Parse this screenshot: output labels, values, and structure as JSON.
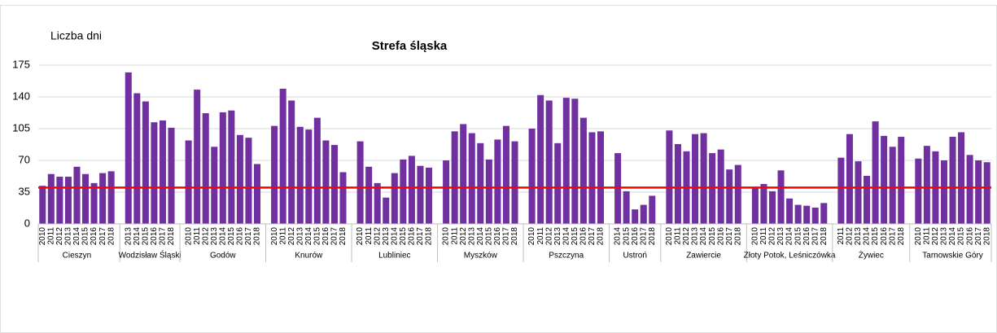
{
  "chart_data": {
    "type": "bar",
    "title": "Strefa śląska",
    "y_label": "Liczba dni",
    "color": "#7030a0",
    "grid": true,
    "ylim": [
      0,
      175
    ],
    "yticks": [
      0,
      35,
      70,
      105,
      140,
      175
    ],
    "reference_line": {
      "value": 40,
      "color": "#ff0000"
    },
    "groups": [
      {
        "name": "Cieszyn",
        "categories": [
          "2010",
          "2011",
          "2012",
          "2013",
          "2014",
          "2015",
          "2016",
          "2017",
          "2018"
        ],
        "values": [
          42,
          55,
          52,
          52,
          63,
          55,
          45,
          56,
          58
        ]
      },
      {
        "name": "Wodzisław Śląski",
        "categories": [
          "2013",
          "2014",
          "2015",
          "2016",
          "2017",
          "2018"
        ],
        "values": [
          167,
          144,
          135,
          112,
          114,
          106
        ]
      },
      {
        "name": "Godów",
        "categories": [
          "2010",
          "2011",
          "2012",
          "2013",
          "2014",
          "2015",
          "2016",
          "2017",
          "2018"
        ],
        "values": [
          92,
          148,
          122,
          85,
          123,
          125,
          98,
          95,
          66
        ]
      },
      {
        "name": "Knurów",
        "categories": [
          "2010",
          "2011",
          "2012",
          "2013",
          "2014",
          "2015",
          "2016",
          "2017",
          "2018"
        ],
        "values": [
          108,
          149,
          136,
          107,
          104,
          117,
          92,
          87,
          57
        ]
      },
      {
        "name": "Lubliniec",
        "categories": [
          "2010",
          "2011",
          "2012",
          "2013",
          "2014",
          "2015",
          "2016",
          "2017",
          "2018"
        ],
        "values": [
          91,
          63,
          45,
          29,
          56,
          71,
          75,
          64,
          62
        ]
      },
      {
        "name": "Myszków",
        "categories": [
          "2010",
          "2011",
          "2012",
          "2013",
          "2014",
          "2015",
          "2016",
          "2017",
          "2018"
        ],
        "values": [
          70,
          102,
          110,
          100,
          89,
          71,
          93,
          108,
          91
        ]
      },
      {
        "name": "Pszczyna",
        "categories": [
          "2010",
          "2011",
          "2012",
          "2013",
          "2014",
          "2015",
          "2016",
          "2017",
          "2018"
        ],
        "values": [
          105,
          142,
          136,
          89,
          139,
          138,
          117,
          101,
          102
        ]
      },
      {
        "name": "Ustroń",
        "categories": [
          "2014",
          "2015",
          "2016",
          "2017",
          "2018"
        ],
        "values": [
          78,
          36,
          16,
          21,
          31
        ]
      },
      {
        "name": "Zawiercie",
        "categories": [
          "2010",
          "2011",
          "2012",
          "2013",
          "2014",
          "2015",
          "2016",
          "2017",
          "2018"
        ],
        "values": [
          103,
          88,
          80,
          99,
          100,
          78,
          82,
          60,
          65
        ]
      },
      {
        "name": "Złoty Potok, Leśniczówka",
        "categories": [
          "2010",
          "2011",
          "2012",
          "2013",
          "2014",
          "2015",
          "2016",
          "2017",
          "2018"
        ],
        "values": [
          39,
          44,
          36,
          59,
          28,
          21,
          20,
          18,
          23
        ]
      },
      {
        "name": "Żywiec",
        "categories": [
          "2011",
          "2012",
          "2013",
          "2014",
          "2015",
          "2016",
          "2017",
          "2018"
        ],
        "values": [
          73,
          99,
          69,
          53,
          113,
          97,
          85,
          96
        ]
      },
      {
        "name": "Tarnowskie Góry",
        "categories": [
          "2010",
          "2011",
          "2012",
          "2013",
          "2014",
          "2015",
          "2016",
          "2017",
          "2018"
        ],
        "values": [
          72,
          86,
          80,
          70,
          96,
          101,
          76,
          70,
          68
        ]
      }
    ]
  }
}
